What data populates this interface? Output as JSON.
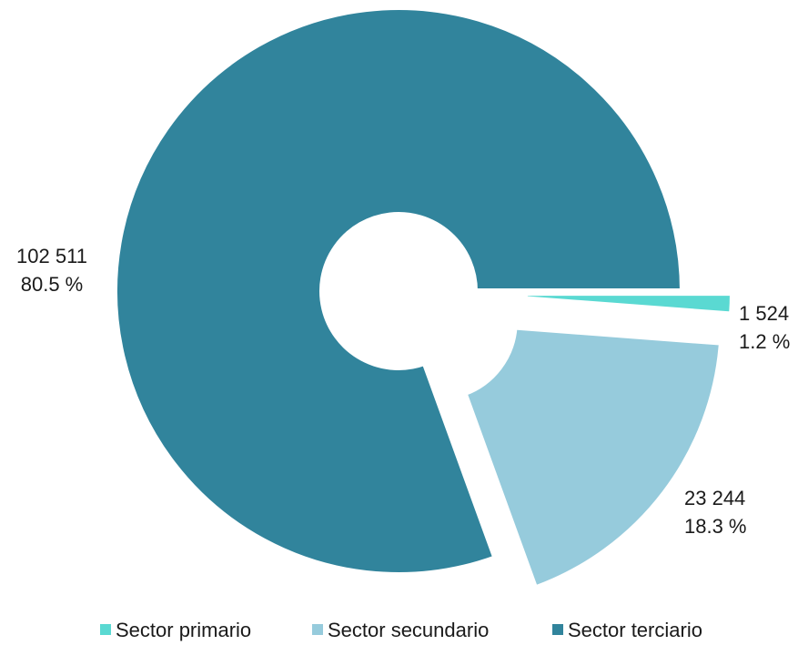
{
  "chart_data": {
    "type": "pie",
    "variant": "exploded-donut",
    "slices": [
      {
        "name": "Sector primario",
        "value": 1524,
        "value_label": "1 524",
        "percent_label": "1.2 %",
        "color": "#5ad9d2"
      },
      {
        "name": "Sector secundario",
        "value": 23244,
        "value_label": "23 244",
        "percent_label": "18.3 %",
        "color": "#96cbdc"
      },
      {
        "name": "Sector terciario",
        "value": 102511,
        "value_label": "102 511",
        "percent_label": "80.5 %",
        "color": "#31849c"
      }
    ],
    "legend_position": "bottom",
    "title": ""
  }
}
